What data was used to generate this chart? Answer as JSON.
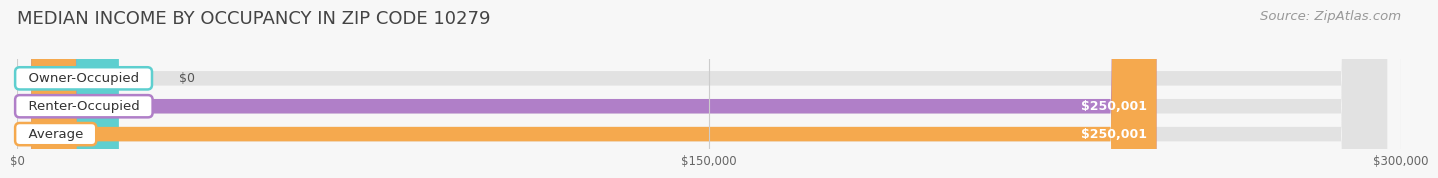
{
  "title": "MEDIAN INCOME BY OCCUPANCY IN ZIP CODE 10279",
  "source": "Source: ZipAtlas.com",
  "categories": [
    "Owner-Occupied",
    "Renter-Occupied",
    "Average"
  ],
  "values": [
    0,
    250001,
    250001
  ],
  "bar_colors": [
    "#5ecfcf",
    "#b07fc8",
    "#f5a94e"
  ],
  "value_labels": [
    "$0",
    "$250,001",
    "$250,001"
  ],
  "xlim": [
    0,
    300000
  ],
  "xticks": [
    0,
    150000,
    300000
  ],
  "xtick_labels": [
    "$0",
    "$150,000",
    "$300,000"
  ],
  "bg_color": "#f7f7f7",
  "bar_bg_color": "#e2e2e2",
  "title_fontsize": 13,
  "source_fontsize": 9.5,
  "category_fontsize": 9.5,
  "value_label_fontsize": 9
}
